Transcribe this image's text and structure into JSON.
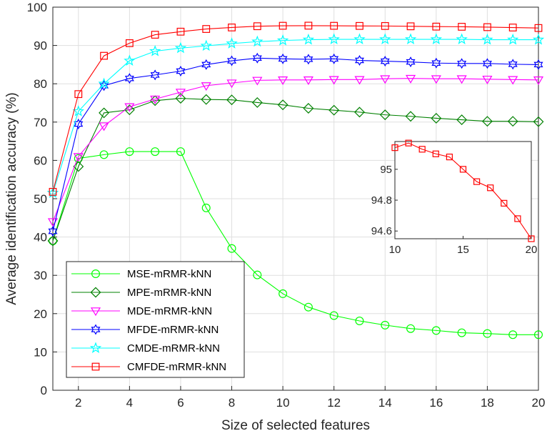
{
  "chart_data": [
    {
      "type": "line",
      "title": "",
      "xlabel": "Size of selected features",
      "ylabel": "Average identification accuracy (%)",
      "xlim": [
        1,
        20
      ],
      "ylim": [
        0,
        100
      ],
      "xticks": [
        "2",
        "4",
        "6",
        "8",
        "10",
        "12",
        "14",
        "16",
        "18",
        "20"
      ],
      "yticks": [
        "0",
        "10",
        "20",
        "30",
        "40",
        "50",
        "60",
        "70",
        "80",
        "90",
        "100"
      ],
      "grid": true,
      "legend_position": "bottom-left",
      "x": [
        1,
        2,
        3,
        4,
        5,
        6,
        7,
        8,
        9,
        10,
        11,
        12,
        13,
        14,
        15,
        16,
        17,
        18,
        19,
        20
      ],
      "series": [
        {
          "name": "MSE-mRMR-kNN",
          "color": "#00ff00",
          "marker": "circle",
          "values": [
            39,
            60.5,
            61.5,
            62.3,
            62.3,
            62.3,
            47.6,
            37,
            30.1,
            25.2,
            21.7,
            19.5,
            18.1,
            17,
            16.1,
            15.6,
            15,
            14.8,
            14.5,
            14.5
          ]
        },
        {
          "name": "MPE-mRMR-kNN",
          "color": "#008000",
          "marker": "diamond",
          "values": [
            39,
            58.4,
            72.4,
            73.2,
            75.6,
            76.2,
            75.9,
            75.8,
            75.1,
            74.5,
            73.6,
            73.1,
            72.6,
            71.9,
            71.5,
            71,
            70.6,
            70.2,
            70.2,
            70.1
          ]
        },
        {
          "name": "MDE-mRMR-kNN",
          "color": "#ff00ff",
          "marker": "triangle-down",
          "values": [
            44,
            61,
            69,
            74,
            76,
            77.8,
            79.5,
            80.2,
            80.9,
            81,
            81,
            81.1,
            81.1,
            81.3,
            81.4,
            81.3,
            81.3,
            81.2,
            81.1,
            81
          ]
        },
        {
          "name": "MFDE-mRMR-kNN",
          "color": "#0000ff",
          "marker": "hexagram",
          "values": [
            41.5,
            69.5,
            79.5,
            81.4,
            82.3,
            83.3,
            85,
            86,
            86.7,
            86.5,
            86.4,
            86.5,
            86.1,
            85.9,
            85.7,
            85.4,
            85.3,
            85.3,
            85.1,
            85
          ]
        },
        {
          "name": "CMDE-mRMR-kNN",
          "color": "#00ffff",
          "marker": "pentagram",
          "values": [
            51.5,
            72.8,
            80,
            86,
            88.5,
            89.3,
            89.9,
            90.5,
            91,
            91.3,
            91.5,
            91.6,
            91.6,
            91.6,
            91.6,
            91.6,
            91.6,
            91.5,
            91.5,
            91.5
          ]
        },
        {
          "name": "CMFDE-mRMR-kNN",
          "color": "#ff0000",
          "marker": "square",
          "values": [
            51.8,
            77.3,
            87.3,
            90.6,
            92.8,
            93.6,
            94.3,
            94.7,
            95.02,
            95.14,
            95.17,
            95.13,
            95.1,
            95.08,
            95.0,
            94.92,
            94.88,
            94.78,
            94.68,
            94.55
          ]
        }
      ]
    },
    {
      "type": "line",
      "title": "",
      "xlim": [
        10,
        20
      ],
      "ylim": [
        94.55,
        95.18
      ],
      "xticks": [
        "10",
        "15",
        "20"
      ],
      "yticks": [
        "94.6",
        "94.8",
        "95"
      ],
      "grid": false,
      "series": [
        {
          "name": "CMFDE-mRMR-kNN",
          "color": "#ff0000",
          "marker": "square",
          "x": [
            10,
            11,
            12,
            13,
            14,
            15,
            16,
            17,
            18,
            19,
            20
          ],
          "values": [
            95.14,
            95.17,
            95.13,
            95.1,
            95.08,
            95.0,
            94.92,
            94.88,
            94.78,
            94.68,
            94.55
          ]
        }
      ]
    }
  ]
}
